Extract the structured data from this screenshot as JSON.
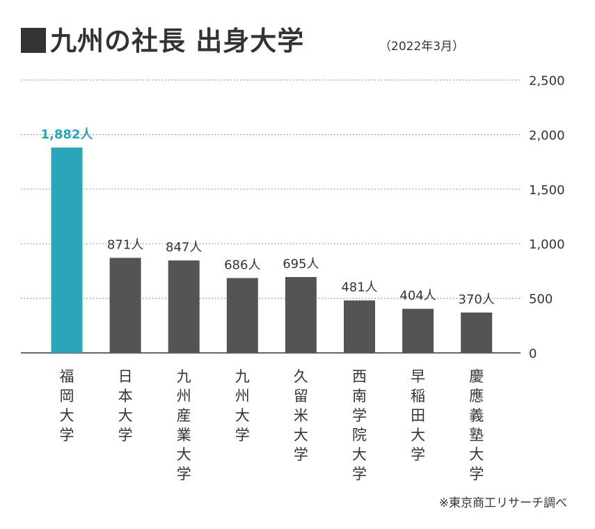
{
  "title": "九州の社長 出身大学",
  "subtitle": "（2022年3月）",
  "source": "※東京商工リサーチ調べ",
  "unit": "人",
  "colors": {
    "highlight": "#2aa6b8",
    "bar": "#545456",
    "grid": "#888888"
  },
  "chart_data": {
    "type": "bar",
    "categories": [
      "福岡大学",
      "日本大学",
      "九州産業大学",
      "九州大学",
      "久留米大学",
      "西南学院大学",
      "早稲田大学",
      "慶應義塾大学"
    ],
    "values": [
      1882,
      871,
      847,
      686,
      695,
      481,
      404,
      370
    ],
    "data_labels": [
      "1,882人",
      "871人",
      "847人",
      "686人",
      "695人",
      "481人",
      "404人",
      "370人"
    ],
    "highlight_index": 0,
    "yticks": [
      0,
      500,
      1000,
      1500,
      2000,
      2500
    ],
    "ytick_labels": [
      "0",
      "500",
      "1,000",
      "1,500",
      "2,000",
      "2,500"
    ],
    "ylim": [
      0,
      2500
    ],
    "grid": true,
    "y_axis_side": "right"
  }
}
